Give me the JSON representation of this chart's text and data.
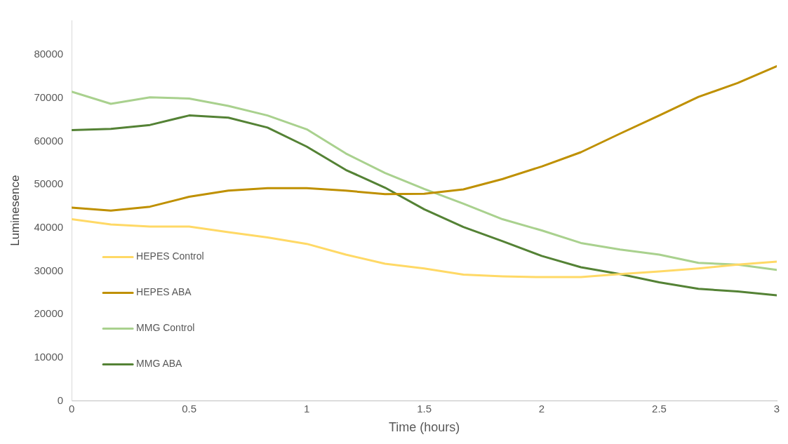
{
  "chart_data": {
    "type": "line",
    "xlabel": "Time (hours)",
    "ylabel": "Luminesence",
    "x": [
      0,
      0.1667,
      0.3333,
      0.5,
      0.6667,
      0.8333,
      1,
      1.1667,
      1.3333,
      1.5,
      1.6667,
      1.8333,
      2,
      2.1667,
      2.3333,
      2.5,
      2.6667,
      2.8333,
      3
    ],
    "series": [
      {
        "name": "HEPES Control",
        "color": "#ffd966",
        "values": [
          42000,
          40800,
          40300,
          40300,
          39000,
          37800,
          36300,
          33800,
          31700,
          30600,
          29200,
          28800,
          28600,
          28600,
          29300,
          29900,
          30600,
          31500,
          32200
        ]
      },
      {
        "name": "HEPES ABA",
        "color": "#bf9000",
        "values": [
          44700,
          44000,
          44900,
          47200,
          48600,
          49200,
          49200,
          48600,
          47800,
          47900,
          48900,
          51300,
          54200,
          57500,
          61800,
          66000,
          70300,
          73500,
          77400
        ]
      },
      {
        "name": "MMG Control",
        "color": "#a9d18e",
        "values": [
          71500,
          68700,
          70200,
          69900,
          68200,
          66000,
          62800,
          57200,
          52700,
          49000,
          45600,
          42000,
          39400,
          36500,
          35000,
          33800,
          31900,
          31500,
          30300
        ]
      },
      {
        "name": "MMG ABA",
        "color": "#548235",
        "values": [
          62600,
          62900,
          63800,
          66000,
          65500,
          63200,
          58800,
          53400,
          49300,
          44300,
          40200,
          36900,
          33500,
          30900,
          29300,
          27400,
          25900,
          25300,
          24400
        ]
      }
    ],
    "xlim": [
      0,
      3
    ],
    "xticks": [
      0,
      0.5,
      1,
      1.5,
      2,
      2.5,
      3
    ],
    "ylim": [
      0,
      88000
    ],
    "yticks": [
      0,
      10000,
      20000,
      30000,
      40000,
      50000,
      60000,
      70000,
      80000
    ],
    "grid": false,
    "legend": "bottom left",
    "marker": "none",
    "line_style": "solid"
  }
}
